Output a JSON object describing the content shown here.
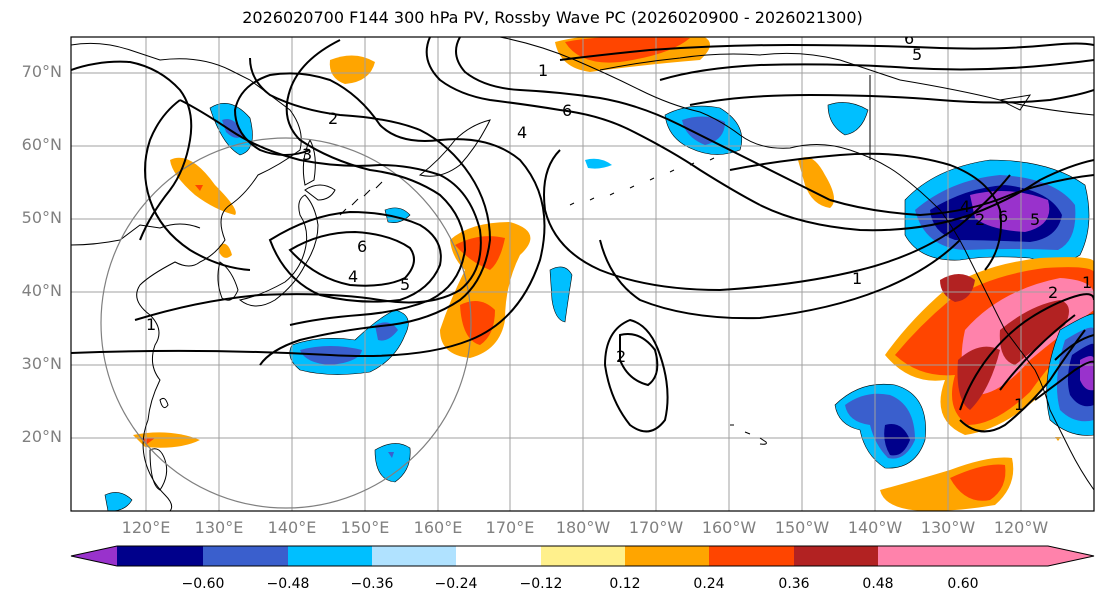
{
  "title": "2026020700 F144 300 hPa PV, Rossby Wave PC (2026020900 - 2026021300)",
  "lat_labels": [
    "70°N",
    "60°N",
    "50°N",
    "40°N",
    "30°N",
    "20°N"
  ],
  "lon_labels": [
    "120°E",
    "130°E",
    "140°E",
    "150°E",
    "160°E",
    "170°E",
    "180°W",
    "170°W",
    "160°W",
    "150°W",
    "140°W",
    "130°W",
    "120°W"
  ],
  "contour_labels": [
    "1",
    "2",
    "3",
    "4",
    "5",
    "6",
    "1",
    "6",
    "4",
    "2",
    "6",
    "5",
    "4",
    "1",
    "2",
    "1",
    "2",
    "1",
    "6",
    "5"
  ],
  "colorbar": {
    "ticks": [
      "−0.60",
      "−0.48",
      "−0.36",
      "−0.24",
      "−0.12",
      "0.12",
      "0.24",
      "0.36",
      "0.48",
      "0.60"
    ],
    "colors": [
      "#9932cc",
      "#00008b",
      "#3a5fcd",
      "#00bfff",
      "#b0e2ff",
      "#ffffff",
      "#fff08c",
      "#ffa500",
      "#ff4500",
      "#b22222",
      "#ff82ab"
    ]
  }
}
